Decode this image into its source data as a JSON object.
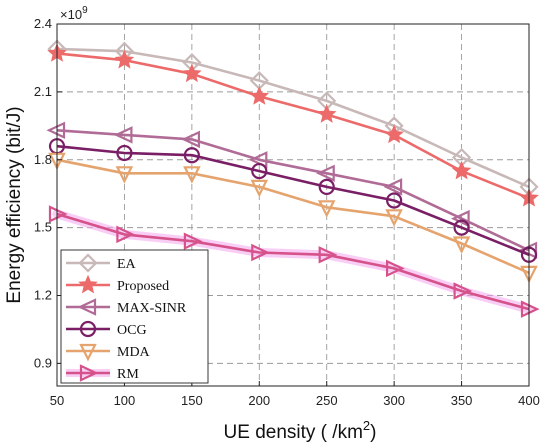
{
  "chart_data": {
    "type": "line",
    "title": "",
    "xlabel": "UE density ( /km",
    "xlabel_sup": "2",
    "xlabel_end": ")",
    "ylabel": "Energy efficiency (bit/J)",
    "y_multiplier": "×10",
    "y_multiplier_exp": "9",
    "x": [
      50,
      100,
      150,
      200,
      250,
      300,
      350,
      400
    ],
    "x_ticks": [
      "50",
      "100",
      "150",
      "200",
      "250",
      "300",
      "350",
      "400"
    ],
    "y_ticks": [
      "0.9",
      "1.2",
      "1.5",
      "1.8",
      "2.1",
      "2.4"
    ],
    "y_tick_values": [
      0.9,
      1.2,
      1.5,
      1.8,
      2.1,
      2.4
    ],
    "xlim": [
      50,
      400
    ],
    "ylim": [
      0.8,
      2.4
    ],
    "grid": true,
    "legend_position": "bottom-left",
    "series": [
      {
        "name": "EA",
        "color": "#c8b8b8",
        "marker": "diamond",
        "values": [
          2.29,
          2.28,
          2.23,
          2.15,
          2.06,
          1.95,
          1.81,
          1.68
        ]
      },
      {
        "name": "Proposed",
        "color": "#ec6a6a",
        "marker": "star",
        "values": [
          2.27,
          2.24,
          2.18,
          2.08,
          2.0,
          1.91,
          1.75,
          1.63
        ]
      },
      {
        "name": "MAX-SINR",
        "color": "#b06c96",
        "marker": "triangle-left",
        "values": [
          1.93,
          1.91,
          1.89,
          1.8,
          1.74,
          1.68,
          1.54,
          1.4
        ]
      },
      {
        "name": "OCG",
        "color": "#7a1f66",
        "marker": "circle",
        "values": [
          1.86,
          1.83,
          1.82,
          1.75,
          1.68,
          1.62,
          1.5,
          1.38
        ]
      },
      {
        "name": "MDA",
        "color": "#e5a46e",
        "marker": "triangle-down",
        "values": [
          1.8,
          1.74,
          1.74,
          1.68,
          1.59,
          1.55,
          1.43,
          1.3
        ]
      },
      {
        "name": "RM",
        "color": "#d6528a",
        "marker": "triangle-right",
        "glow": "#f4a6ee",
        "values": [
          1.56,
          1.47,
          1.44,
          1.39,
          1.38,
          1.32,
          1.22,
          1.14
        ]
      }
    ]
  }
}
